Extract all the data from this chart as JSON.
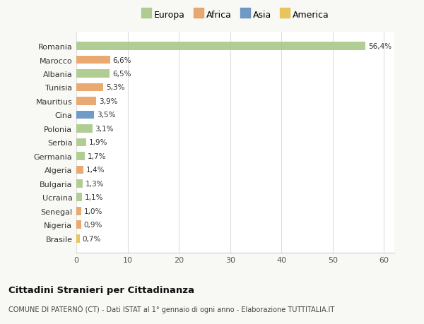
{
  "countries": [
    "Brasile",
    "Nigeria",
    "Senegal",
    "Ucraina",
    "Bulgaria",
    "Algeria",
    "Germania",
    "Serbia",
    "Polonia",
    "Cina",
    "Mauritius",
    "Tunisia",
    "Albania",
    "Marocco",
    "Romania"
  ],
  "values": [
    0.7,
    0.9,
    1.0,
    1.1,
    1.3,
    1.4,
    1.7,
    1.9,
    3.1,
    3.5,
    3.9,
    5.3,
    6.5,
    6.6,
    56.4
  ],
  "labels": [
    "0,7%",
    "0,9%",
    "1,0%",
    "1,1%",
    "1,3%",
    "1,4%",
    "1,7%",
    "1,9%",
    "3,1%",
    "3,5%",
    "3,9%",
    "5,3%",
    "6,5%",
    "6,6%",
    "56,4%"
  ],
  "colors": [
    "#e8c050",
    "#e8a060",
    "#e8a060",
    "#a8c888",
    "#a8c888",
    "#e8a060",
    "#a8c888",
    "#a8c888",
    "#a8c888",
    "#6090c0",
    "#e8a060",
    "#e8a060",
    "#a8c888",
    "#e8a060",
    "#a8c888"
  ],
  "legend_labels": [
    "Europa",
    "Africa",
    "Asia",
    "America"
  ],
  "legend_colors": [
    "#a8c888",
    "#e8a060",
    "#6090c0",
    "#e8c050"
  ],
  "title": "Cittadini Stranieri per Cittadinanza",
  "subtitle": "COMUNE DI PATERNÒ (CT) - Dati ISTAT al 1° gennaio di ogni anno - Elaborazione TUTTITALIA.IT",
  "xlim": [
    0,
    62
  ],
  "xticks": [
    0,
    10,
    20,
    30,
    40,
    50,
    60
  ],
  "bg_color": "#f8f8f5",
  "plot_bg_color": "#ffffff"
}
